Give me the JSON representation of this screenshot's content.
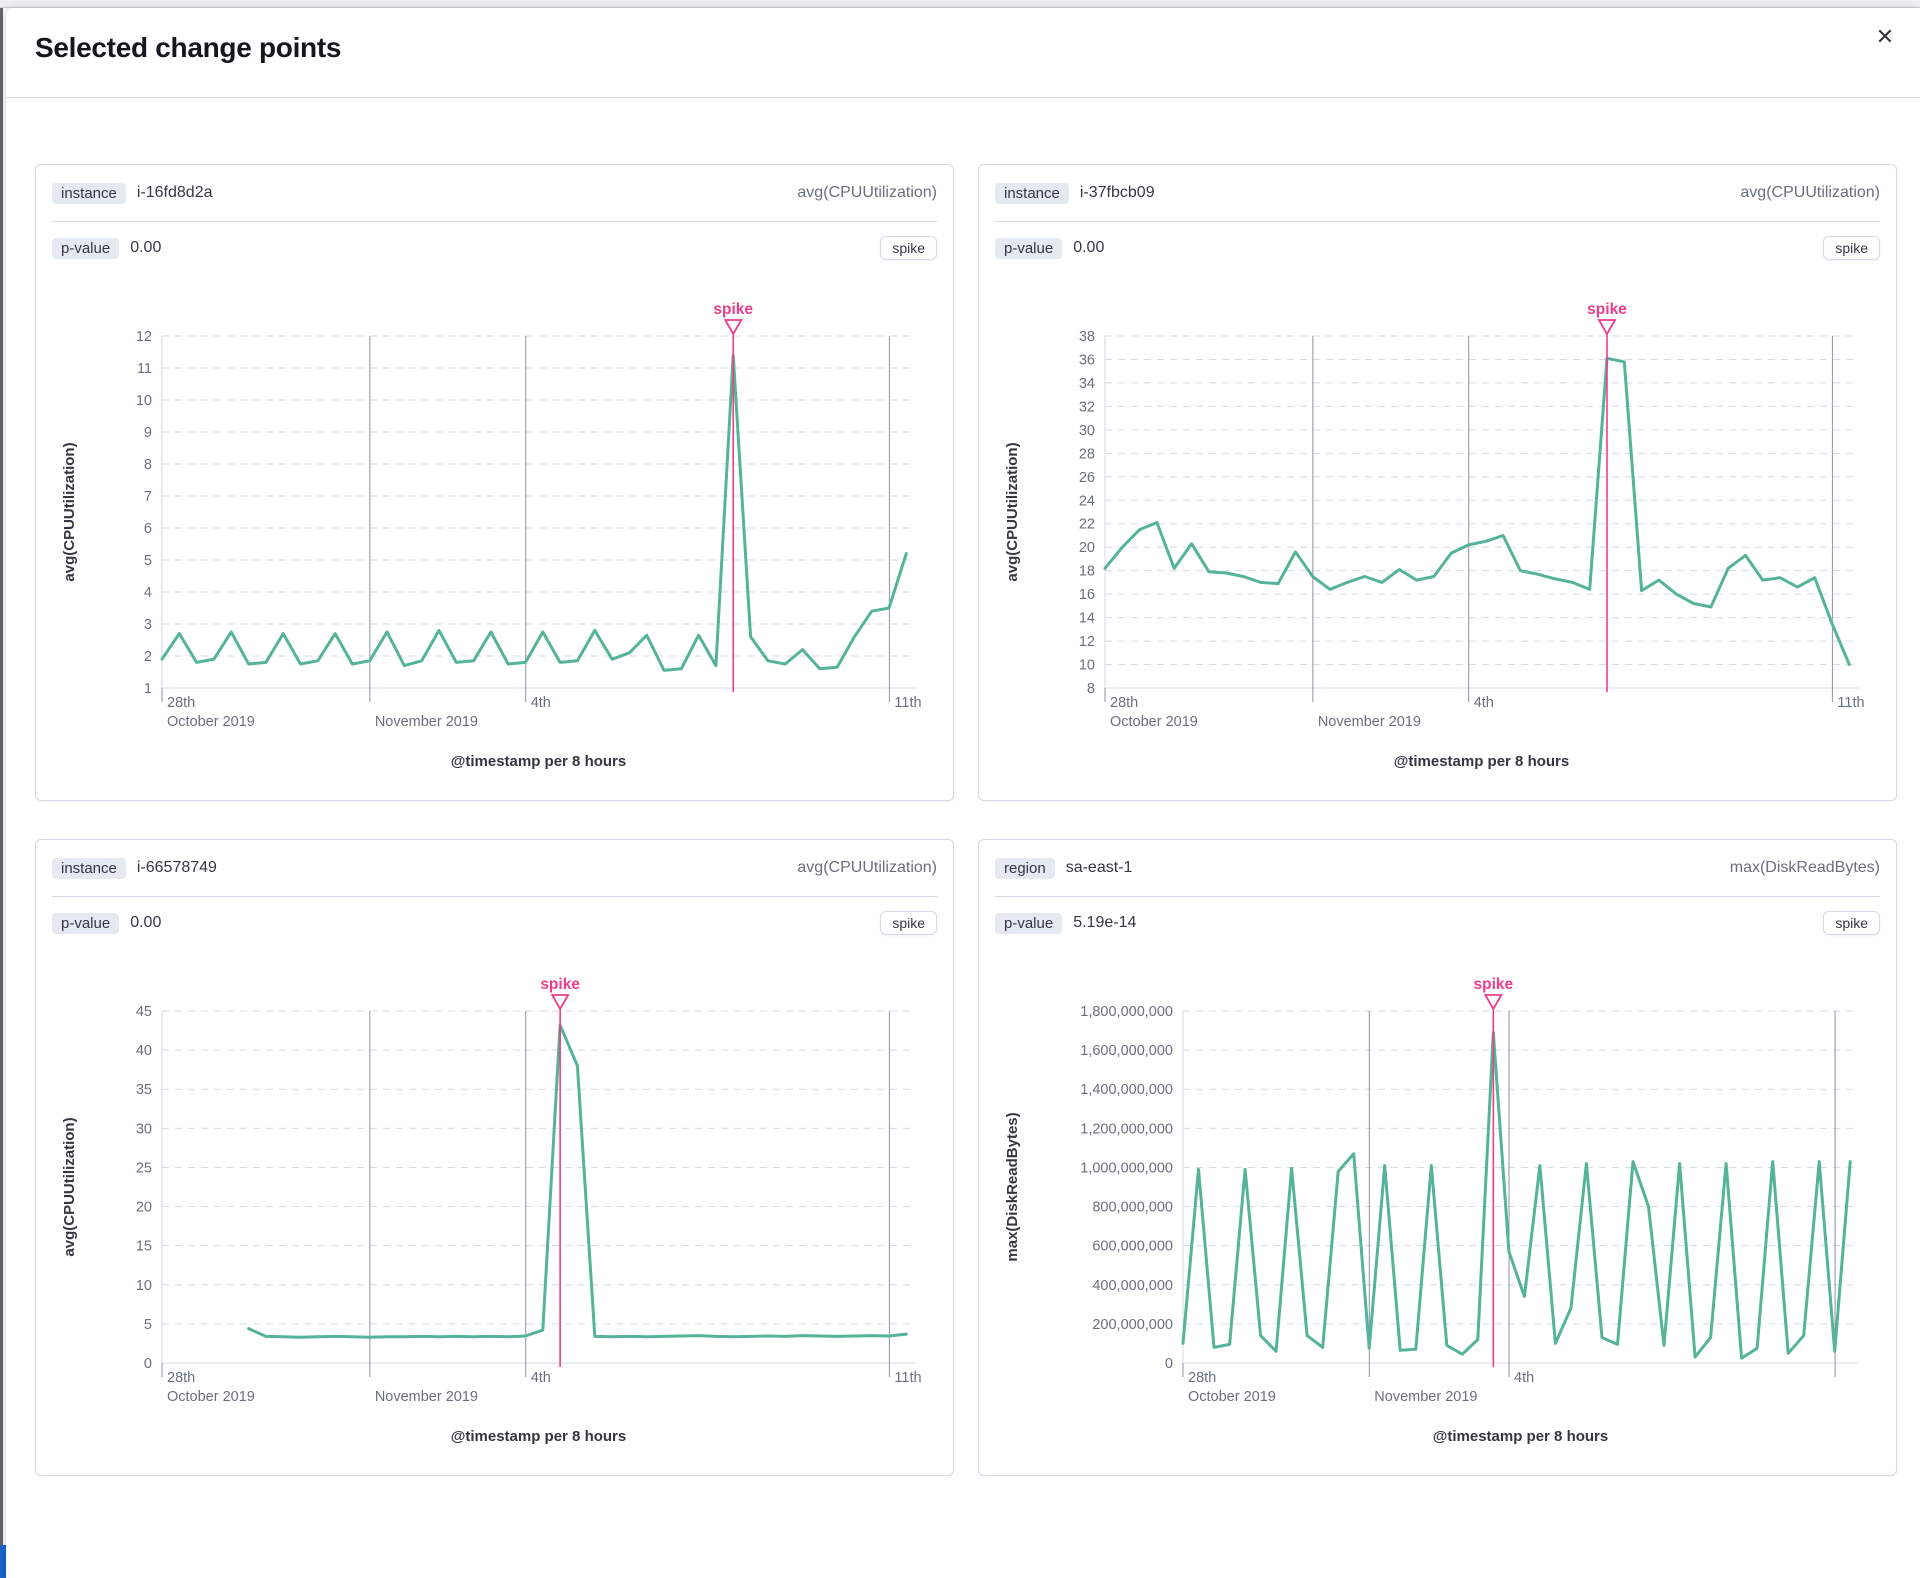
{
  "modal": {
    "title": "Selected change points"
  },
  "icons": {
    "close": "✕"
  },
  "colors": {
    "accent_pink": "#ee3d8b",
    "series_green": "#54b399",
    "grid": "#d5dae3",
    "event_line": "#8d93a0",
    "tick_text": "#69707d",
    "axis_text": "#343741",
    "panel_border": "#d3dae6"
  },
  "panels": [
    {
      "field_label": "instance",
      "field_value": "i-16fd8d2a",
      "metric": "avg(CPUUtilization)",
      "p_label": "p-value",
      "p_value": "0.00",
      "change_type": "spike"
    },
    {
      "field_label": "instance",
      "field_value": "i-37fbcb09",
      "metric": "avg(CPUUtilization)",
      "p_label": "p-value",
      "p_value": "0.00",
      "change_type": "spike"
    },
    {
      "field_label": "instance",
      "field_value": "i-66578749",
      "metric": "avg(CPUUtilization)",
      "p_label": "p-value",
      "p_value": "0.00",
      "change_type": "spike"
    },
    {
      "field_label": "region",
      "field_value": "sa-east-1",
      "metric": "max(DiskReadBytes)",
      "p_label": "p-value",
      "p_value": "5.19e-14",
      "change_type": "spike"
    }
  ],
  "chart_data": [
    {
      "type": "line",
      "name": "avg(CPUUtilization)",
      "ylabel": "avg(CPUUtilization)",
      "xlabel": "@timestamp per 8 hours",
      "ylim": [
        1,
        12
      ],
      "y_ticks": [
        {
          "v": 12,
          "label": "12"
        },
        {
          "v": 11,
          "label": "11"
        },
        {
          "v": 10,
          "label": "10"
        },
        {
          "v": 9,
          "label": "9"
        },
        {
          "v": 8,
          "label": "8"
        },
        {
          "v": 7,
          "label": "7"
        },
        {
          "v": 6,
          "label": "6"
        },
        {
          "v": 5,
          "label": "5"
        },
        {
          "v": 4,
          "label": "4"
        },
        {
          "v": 3,
          "label": "3"
        },
        {
          "v": 2,
          "label": "2"
        },
        {
          "v": 1,
          "label": "1"
        }
      ],
      "x_total": 43.5,
      "x_ticks": [
        {
          "f": 0.0,
          "top": "28th",
          "bottom": "October 2019",
          "line": false
        },
        {
          "f": 0.276,
          "top": "",
          "bottom": "November 2019",
          "line": true
        },
        {
          "f": 0.483,
          "top": "4th",
          "bottom": "",
          "line": true
        },
        {
          "f": 0.966,
          "top": "11th",
          "bottom": "",
          "line": true
        }
      ],
      "values": [
        1.9,
        2.7,
        1.8,
        1.9,
        2.75,
        1.75,
        1.8,
        2.7,
        1.75,
        1.85,
        2.7,
        1.75,
        1.85,
        2.75,
        1.7,
        1.85,
        2.8,
        1.8,
        1.85,
        2.75,
        1.75,
        1.8,
        2.75,
        1.8,
        1.85,
        2.8,
        1.9,
        2.1,
        2.65,
        1.55,
        1.6,
        2.65,
        1.7,
        11.4,
        2.6,
        1.85,
        1.75,
        2.2,
        1.6,
        1.65,
        2.6,
        3.4,
        3.5,
        5.2
      ],
      "annotation": {
        "label": "spike",
        "index": 33
      }
    },
    {
      "type": "line",
      "name": "avg(CPUUtilization)",
      "ylabel": "avg(CPUUtilization)",
      "xlabel": "@timestamp per 8 hours",
      "ylim": [
        8,
        38
      ],
      "y_ticks": [
        {
          "v": 38,
          "label": "38"
        },
        {
          "v": 36,
          "label": "36"
        },
        {
          "v": 34,
          "label": "34"
        },
        {
          "v": 32,
          "label": "32"
        },
        {
          "v": 30,
          "label": "30"
        },
        {
          "v": 28,
          "label": "28"
        },
        {
          "v": 26,
          "label": "26"
        },
        {
          "v": 24,
          "label": "24"
        },
        {
          "v": 22,
          "label": "22"
        },
        {
          "v": 20,
          "label": "20"
        },
        {
          "v": 18,
          "label": "18"
        },
        {
          "v": 16,
          "label": "16"
        },
        {
          "v": 14,
          "label": "14"
        },
        {
          "v": 12,
          "label": "12"
        },
        {
          "v": 10,
          "label": "10"
        },
        {
          "v": 8,
          "label": "8"
        }
      ],
      "x_total": 43.5,
      "x_ticks": [
        {
          "f": 0.0,
          "top": "28th",
          "bottom": "October 2019",
          "line": false
        },
        {
          "f": 0.276,
          "top": "",
          "bottom": "November 2019",
          "line": true
        },
        {
          "f": 0.483,
          "top": "4th",
          "bottom": "",
          "line": true
        },
        {
          "f": 0.966,
          "top": "11th",
          "bottom": "",
          "line": true
        }
      ],
      "values": [
        18.2,
        20.0,
        21.5,
        22.1,
        18.2,
        20.3,
        17.9,
        17.8,
        17.5,
        17.0,
        16.9,
        19.6,
        17.5,
        16.4,
        17.0,
        17.5,
        17.0,
        18.1,
        17.2,
        17.5,
        19.5,
        20.2,
        20.5,
        21.0,
        18.0,
        17.7,
        17.3,
        17.0,
        16.4,
        36.1,
        35.8,
        16.3,
        17.2,
        16.0,
        15.2,
        14.9,
        18.2,
        19.3,
        17.2,
        17.4,
        16.6,
        17.4,
        13.5,
        10.0
      ],
      "annotation": {
        "label": "spike",
        "index": 29
      }
    },
    {
      "type": "line",
      "name": "avg(CPUUtilization)",
      "ylabel": "avg(CPUUtilization)",
      "xlabel": "@timestamp per 8 hours",
      "ylim": [
        0,
        45
      ],
      "y_ticks": [
        {
          "v": 45,
          "label": "45"
        },
        {
          "v": 40,
          "label": "40"
        },
        {
          "v": 35,
          "label": "35"
        },
        {
          "v": 30,
          "label": "30"
        },
        {
          "v": 25,
          "label": "25"
        },
        {
          "v": 20,
          "label": "20"
        },
        {
          "v": 15,
          "label": "15"
        },
        {
          "v": 10,
          "label": "10"
        },
        {
          "v": 5,
          "label": "5"
        },
        {
          "v": 0,
          "label": "0"
        }
      ],
      "x_total": 43.5,
      "x_ticks": [
        {
          "f": 0.0,
          "top": "28th",
          "bottom": "October 2019",
          "line": false
        },
        {
          "f": 0.276,
          "top": "",
          "bottom": "November 2019",
          "line": true
        },
        {
          "f": 0.483,
          "top": "4th",
          "bottom": "",
          "line": true
        },
        {
          "f": 0.966,
          "top": "11th",
          "bottom": "",
          "line": true
        }
      ],
      "values": [
        null,
        null,
        null,
        null,
        null,
        4.4,
        3.4,
        3.35,
        3.3,
        3.35,
        3.4,
        3.35,
        3.3,
        3.35,
        3.35,
        3.4,
        3.35,
        3.4,
        3.35,
        3.4,
        3.35,
        3.45,
        4.2,
        43.2,
        38.0,
        3.4,
        3.35,
        3.4,
        3.35,
        3.4,
        3.45,
        3.5,
        3.4,
        3.35,
        3.4,
        3.45,
        3.4,
        3.5,
        3.45,
        3.4,
        3.45,
        3.5,
        3.45,
        3.7
      ],
      "annotation": {
        "label": "spike",
        "index": 23
      }
    },
    {
      "type": "line",
      "name": "max(DiskReadBytes)",
      "ylabel": "max(DiskReadBytes)",
      "xlabel": "@timestamp per 8 hours",
      "ylim": [
        0,
        1800000000
      ],
      "y_ticks": [
        {
          "v": 1800000000,
          "label": "1,800,000,000"
        },
        {
          "v": 1600000000,
          "label": "1,600,000,000"
        },
        {
          "v": 1400000000,
          "label": "1,400,000,000"
        },
        {
          "v": 1200000000,
          "label": "1,200,000,000"
        },
        {
          "v": 1000000000,
          "label": "1,000,000,000"
        },
        {
          "v": 800000000,
          "label": "800,000,000"
        },
        {
          "v": 600000000,
          "label": "600,000,000"
        },
        {
          "v": 400000000,
          "label": "400,000,000"
        },
        {
          "v": 200000000,
          "label": "200,000,000"
        },
        {
          "v": 0,
          "label": "0"
        }
      ],
      "x_total": 43.5,
      "x_ticks": [
        {
          "f": 0.0,
          "top": "28th",
          "bottom": "October 2019",
          "line": false
        },
        {
          "f": 0.276,
          "top": "",
          "bottom": "November 2019",
          "line": true
        },
        {
          "f": 0.483,
          "top": "4th",
          "bottom": "",
          "line": true
        },
        {
          "f": 0.966,
          "top": "",
          "bottom": "",
          "line": true
        }
      ],
      "values": [
        100000000,
        990000000,
        80000000,
        95000000,
        990000000,
        140000000,
        60000000,
        995000000,
        140000000,
        80000000,
        980000000,
        1070000000,
        75000000,
        1010000000,
        65000000,
        70000000,
        1010000000,
        90000000,
        45000000,
        120000000,
        1690000000,
        570000000,
        340000000,
        1010000000,
        100000000,
        280000000,
        1020000000,
        130000000,
        95000000,
        1030000000,
        800000000,
        90000000,
        1020000000,
        30000000,
        130000000,
        1020000000,
        25000000,
        75000000,
        1030000000,
        50000000,
        140000000,
        1030000000,
        60000000,
        1030000000
      ],
      "annotation": {
        "label": "spike",
        "index": 20
      }
    }
  ]
}
